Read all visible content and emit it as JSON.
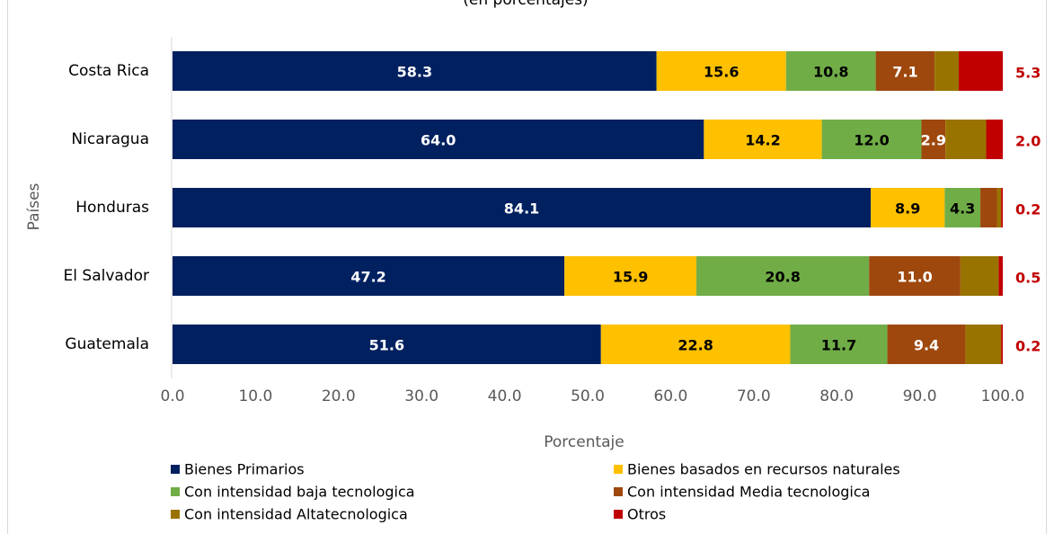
{
  "chart_data": {
    "type": "stacked_bar_horizontal",
    "subtitle": "(en porcentajes)",
    "categories": [
      "Costa Rica",
      "Nicaragua",
      "Honduras",
      "El Salvador",
      "Guatemala"
    ],
    "series": [
      {
        "name": "Bienes Primarios",
        "color": "#002060",
        "values": [
          58.3,
          64.0,
          84.1,
          47.2,
          51.6
        ],
        "value_labels": [
          "58.3",
          "64.0",
          "84.1",
          "47.2",
          "51.6"
        ]
      },
      {
        "name": "Bienes basados en recursos naturales",
        "color": "#ffc000",
        "values": [
          15.6,
          14.2,
          8.9,
          15.9,
          22.8
        ],
        "value_labels": [
          "15.6",
          "14.2",
          "8.9",
          "15.9",
          "22.8"
        ]
      },
      {
        "name": "Con intensidad baja tecnologica",
        "color": "#70ad47",
        "values": [
          10.8,
          12.0,
          4.3,
          20.8,
          11.7
        ],
        "value_labels": [
          "10.8",
          "12.0",
          "4.3",
          "20.8",
          "11.7"
        ]
      },
      {
        "name": "Con intensidad Media tecnologica",
        "color": "#9e480e",
        "values": [
          7.1,
          2.9,
          2.0,
          11.0,
          9.4
        ],
        "value_labels": [
          "7.1",
          "2.9",
          null,
          "11.0",
          "9.4"
        ]
      },
      {
        "name": "Con intensidad Altatecnologica",
        "color": "#997300",
        "values": [
          2.9,
          4.9,
          0.5,
          4.6,
          4.3
        ]
      },
      {
        "name": "Otros",
        "color": "#c00000",
        "values": [
          5.3,
          2.0,
          0.2,
          0.5,
          0.2
        ],
        "value_labels": [
          "5.3",
          "2.0",
          "0.2",
          "0.5",
          "0.2"
        ]
      }
    ],
    "xlabel": "Porcentaje",
    "ylabel": "Países",
    "xlim": [
      0,
      100
    ],
    "xticks": [
      {
        "value": 0,
        "label": "0.0"
      },
      {
        "value": 10,
        "label": "10.0"
      },
      {
        "value": 20,
        "label": "20.0"
      },
      {
        "value": 30,
        "label": "30.0"
      },
      {
        "value": 40,
        "label": "40.0"
      },
      {
        "value": 50,
        "label": "50.0"
      },
      {
        "value": 60,
        "label": "60.0"
      },
      {
        "value": 70,
        "label": "70.0"
      },
      {
        "value": 80,
        "label": "80.0"
      },
      {
        "value": 90,
        "label": "90.0"
      },
      {
        "value": 100,
        "label": "100.0"
      }
    ],
    "legend": "bottom"
  }
}
